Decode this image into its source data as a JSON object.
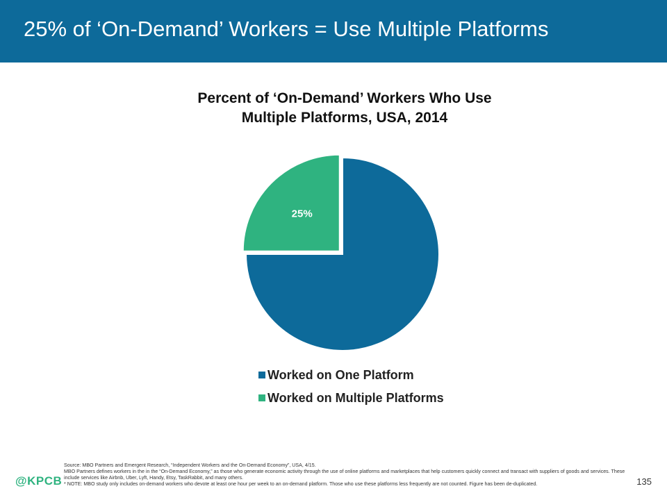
{
  "header": {
    "title": "25% of ‘On-Demand’ Workers = Use Multiple Platforms"
  },
  "chart_data": {
    "type": "pie",
    "title_lines": [
      "Percent of ‘On-Demand’ Workers Who Use",
      "Multiple Platforms, USA, 2014"
    ],
    "categories": [
      "Worked on One Platform",
      "Worked on Multiple Platforms"
    ],
    "values": [
      75,
      25
    ],
    "data_labels": [
      "",
      "25%"
    ],
    "colors": [
      "#0d6a9a",
      "#2fb380"
    ],
    "legend_position": "bottom",
    "exploded_slice": "Worked on Multiple Platforms"
  },
  "legend": {
    "items": [
      {
        "label": "Worked on One Platform",
        "color": "#0d6a9a"
      },
      {
        "label": "Worked on Multiple Platforms",
        "color": "#2fb380"
      }
    ]
  },
  "footer": {
    "source": "Source: MBO Partners and Emergent Research, “Independent Workers and the On-Demand Economy”, USA, 4/15.",
    "definition": "MBO Partners defines workers in the in the “On-Demand Economy,” as those who generate economic activity through the use of online platforms and marketplaces that help customers quickly connect and transact with suppliers of goods and services. These include services like Airbnb, Uber, Lyft, Handy, Etsy, TaskRabbit, and many others.",
    "note": "* NOTE: MBO study only includes on-demand workers who devote at least one hour per week to an on-demand platform. Those who use these platforms less frequently are not counted. Figure has been de-duplicated.",
    "logo": "@KPCB",
    "page_number": "135"
  },
  "colors": {
    "header_bg": "#0d6a9a",
    "logo": "#2fb380"
  }
}
